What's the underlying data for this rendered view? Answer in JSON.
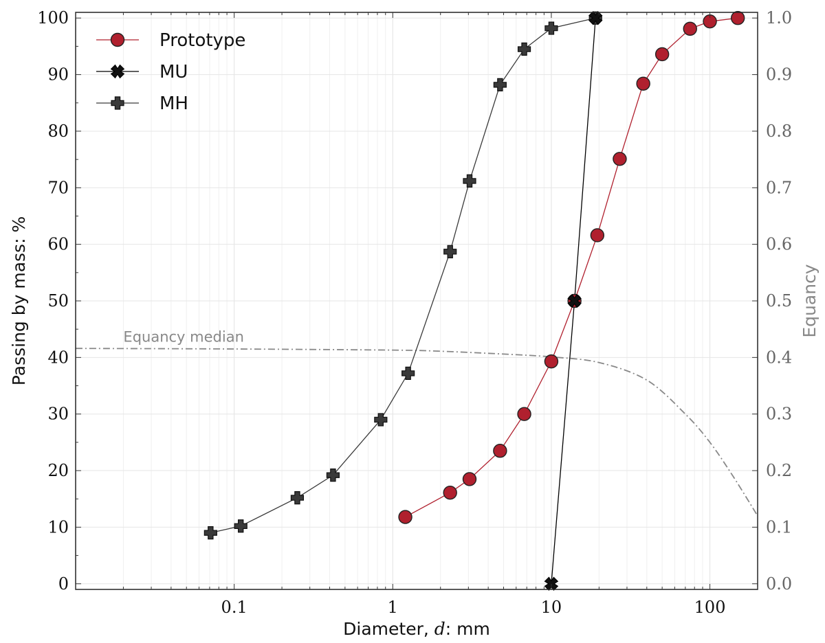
{
  "chart_data": {
    "type": "line",
    "xscale": "log",
    "xlim": [
      0.01,
      200
    ],
    "ylim": [
      -1,
      101
    ],
    "y2lim": [
      -0.01,
      1.01
    ],
    "xlabel_prefix": "Diameter, ",
    "xlabel_var": "d",
    "xlabel_suffix": ": mm",
    "ylabel": "Passing by mass: %",
    "y2label": "Equancy",
    "x_ticks": [
      {
        "value": 0.1,
        "label": "0.1"
      },
      {
        "value": 1,
        "label": "1"
      },
      {
        "value": 10,
        "label": "10"
      },
      {
        "value": 100,
        "label": "100"
      }
    ],
    "y_ticks": [
      {
        "value": 0,
        "label": "0"
      },
      {
        "value": 10,
        "label": "10"
      },
      {
        "value": 20,
        "label": "20"
      },
      {
        "value": 30,
        "label": "30"
      },
      {
        "value": 40,
        "label": "40"
      },
      {
        "value": 50,
        "label": "50"
      },
      {
        "value": 60,
        "label": "60"
      },
      {
        "value": 70,
        "label": "70"
      },
      {
        "value": 80,
        "label": "80"
      },
      {
        "value": 90,
        "label": "90"
      },
      {
        "value": 100,
        "label": "100"
      }
    ],
    "y2_ticks": [
      {
        "value": 0.0,
        "label": "0.0"
      },
      {
        "value": 0.1,
        "label": "0.1"
      },
      {
        "value": 0.2,
        "label": "0.2"
      },
      {
        "value": 0.3,
        "label": "0.3"
      },
      {
        "value": 0.4,
        "label": "0.4"
      },
      {
        "value": 0.5,
        "label": "0.5"
      },
      {
        "value": 0.6,
        "label": "0.6"
      },
      {
        "value": 0.7,
        "label": "0.7"
      },
      {
        "value": 0.8,
        "label": "0.8"
      },
      {
        "value": 0.9,
        "label": "0.9"
      },
      {
        "value": 1.0,
        "label": "1.0"
      }
    ],
    "grid": true,
    "legend_position": "top-left",
    "series": [
      {
        "name": "Prototype",
        "marker": "circle",
        "color": "#b0202e",
        "line_color": "#b0202e",
        "x": [
          1.2,
          2.3,
          3.05,
          4.75,
          6.75,
          10,
          14,
          19.5,
          27,
          38,
          50,
          75,
          100,
          150
        ],
        "y": [
          11.8,
          16.1,
          18.5,
          23.5,
          30.0,
          39.3,
          50.0,
          61.6,
          75.1,
          88.4,
          93.6,
          98.1,
          99.4,
          100.0
        ]
      },
      {
        "name": "MU",
        "marker": "x",
        "color": "#000000",
        "line_color": "#000000",
        "x": [
          10,
          14,
          19
        ],
        "y": [
          0,
          50,
          100
        ]
      },
      {
        "name": "MH",
        "marker": "plus",
        "color": "#3a3a3a",
        "line_color": "#3a3a3a",
        "x": [
          0.071,
          0.11,
          0.25,
          0.42,
          0.84,
          1.25,
          2.3,
          3.05,
          4.75,
          6.75,
          10,
          19
        ],
        "y": [
          9.0,
          10.2,
          15.2,
          19.2,
          29.0,
          37.2,
          58.7,
          71.2,
          88.2,
          94.5,
          98.2,
          100.0
        ]
      }
    ],
    "equancy_median": {
      "label": "Equancy median",
      "axis": "right",
      "color": "#888888",
      "x": [
        0.01,
        0.1,
        1,
        2,
        5,
        10,
        20,
        40,
        70,
        100,
        140,
        200
      ],
      "y": [
        0.416,
        0.415,
        0.413,
        0.411,
        0.406,
        0.401,
        0.391,
        0.36,
        0.3,
        0.25,
        0.19,
        0.12
      ]
    }
  }
}
